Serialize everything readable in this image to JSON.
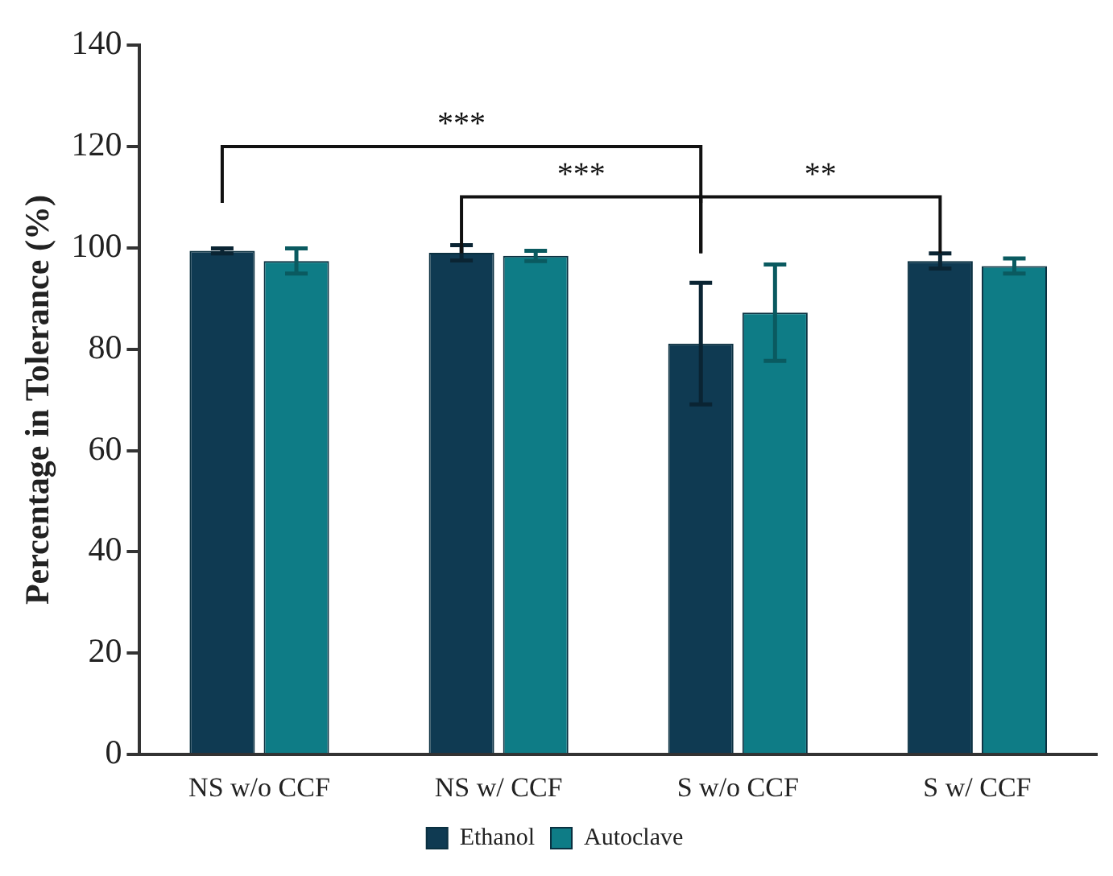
{
  "chart_data": {
    "type": "bar",
    "ylabel": "Percentage in Tolerance (%)",
    "categories": [
      "NS w/o CCF",
      "NS w/ CCF",
      "S w/o CCF",
      "S w/ CCF"
    ],
    "ylim": [
      0,
      140
    ],
    "yticks": [
      0,
      20,
      40,
      60,
      80,
      100,
      120,
      140
    ],
    "legend": "bottom",
    "series": [
      {
        "name": "Ethanol",
        "color": "#0f3a52",
        "values": [
          99.4,
          99,
          81.1,
          97.4
        ],
        "errors": [
          0.5,
          1.5,
          12,
          1.5
        ]
      },
      {
        "name": "Autoclave",
        "color": "#0e7c86",
        "values": [
          97.4,
          98.4,
          87.2,
          96.4
        ],
        "errors": [
          2.5,
          1,
          9.5,
          1.5
        ]
      }
    ],
    "annotations": [
      "***",
      "***",
      "**"
    ]
  }
}
